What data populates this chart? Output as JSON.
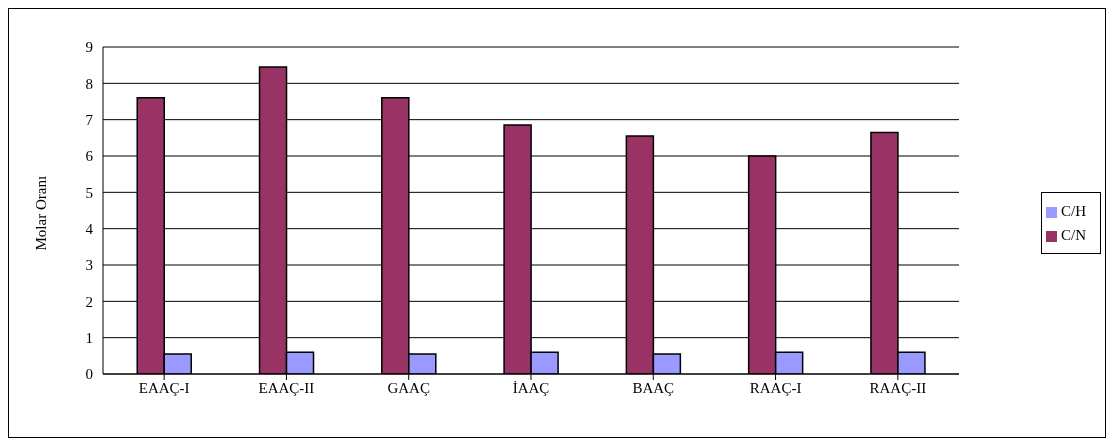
{
  "chart_data": {
    "type": "bar",
    "ylabel": "Molar Oranı",
    "categories": [
      "EAAÇ-I",
      "EAAÇ-II",
      "GAAÇ",
      "İAAÇ",
      "BAAÇ",
      "RAAÇ-I",
      "RAAÇ-II"
    ],
    "series": [
      {
        "name": "C/N",
        "color": "#993366",
        "values": [
          7.6,
          8.45,
          7.6,
          6.85,
          6.55,
          6.0,
          6.65
        ]
      },
      {
        "name": "C/H",
        "color": "#9999ff",
        "values": [
          0.55,
          0.6,
          0.55,
          0.6,
          0.55,
          0.6,
          0.6
        ]
      }
    ],
    "ylim": [
      0,
      9
    ],
    "yticks": [
      0,
      1,
      2,
      3,
      4,
      5,
      6,
      7,
      8,
      9
    ],
    "grid": "y",
    "legend": "right"
  }
}
